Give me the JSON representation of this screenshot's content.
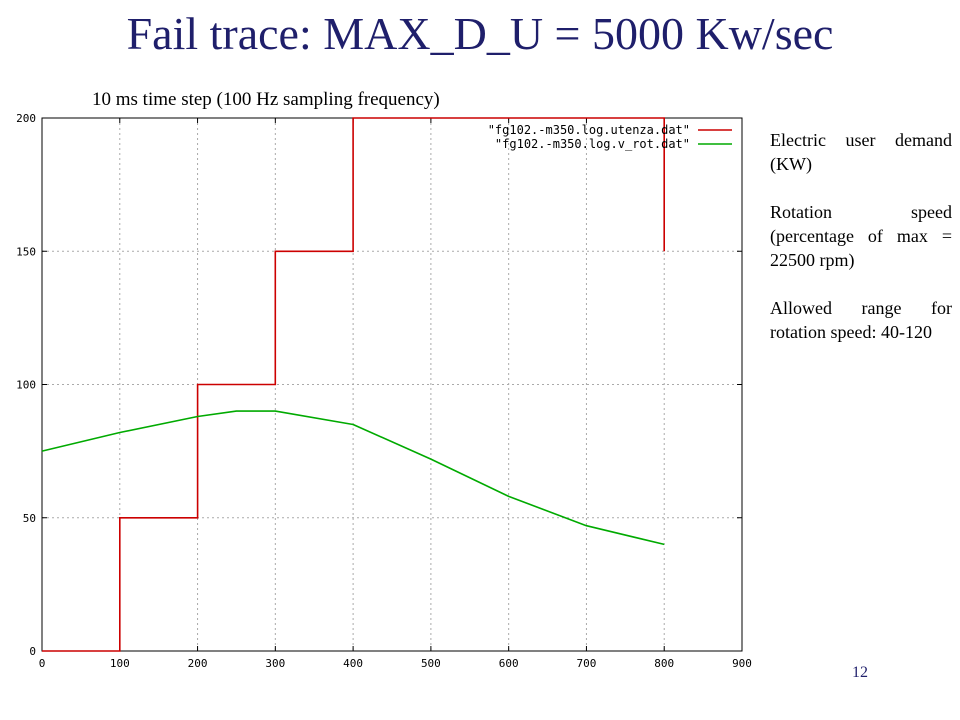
{
  "slide": {
    "title": "Fail trace: MAX_D_U = 5000 Kw/sec",
    "subtitle": "10 ms time step (100 Hz sampling frequency)",
    "notes": [
      "Electric user demand (KW)",
      "Rotation speed (percentage of max = 22500 rpm)",
      "Allowed range for rotation speed: 40-120"
    ],
    "page_number": "12"
  },
  "chart_data": {
    "type": "line",
    "title": "",
    "xlabel": "",
    "ylabel": "",
    "xlim": [
      0,
      900
    ],
    "ylim": [
      0,
      200
    ],
    "xticks": [
      0,
      100,
      200,
      300,
      400,
      500,
      600,
      700,
      800,
      900
    ],
    "yticks": [
      0,
      50,
      100,
      150,
      200
    ],
    "grid": true,
    "legend_position": "top-right",
    "series": [
      {
        "name": "\"fg102.-m350.log.utenza.dat\"",
        "color": "#cc0000",
        "x": [
          0,
          100,
          100,
          200,
          200,
          300,
          300,
          400,
          400,
          800,
          800
        ],
        "y": [
          0,
          0,
          50,
          50,
          100,
          100,
          150,
          150,
          200,
          200,
          150
        ]
      },
      {
        "name": "\"fg102.-m350.log.v_rot.dat\"",
        "color": "#00aa00",
        "x": [
          0,
          100,
          200,
          250,
          300,
          400,
          500,
          600,
          700,
          800
        ],
        "y": [
          75,
          82,
          88,
          90,
          90,
          85,
          72,
          58,
          47,
          40
        ]
      }
    ]
  }
}
